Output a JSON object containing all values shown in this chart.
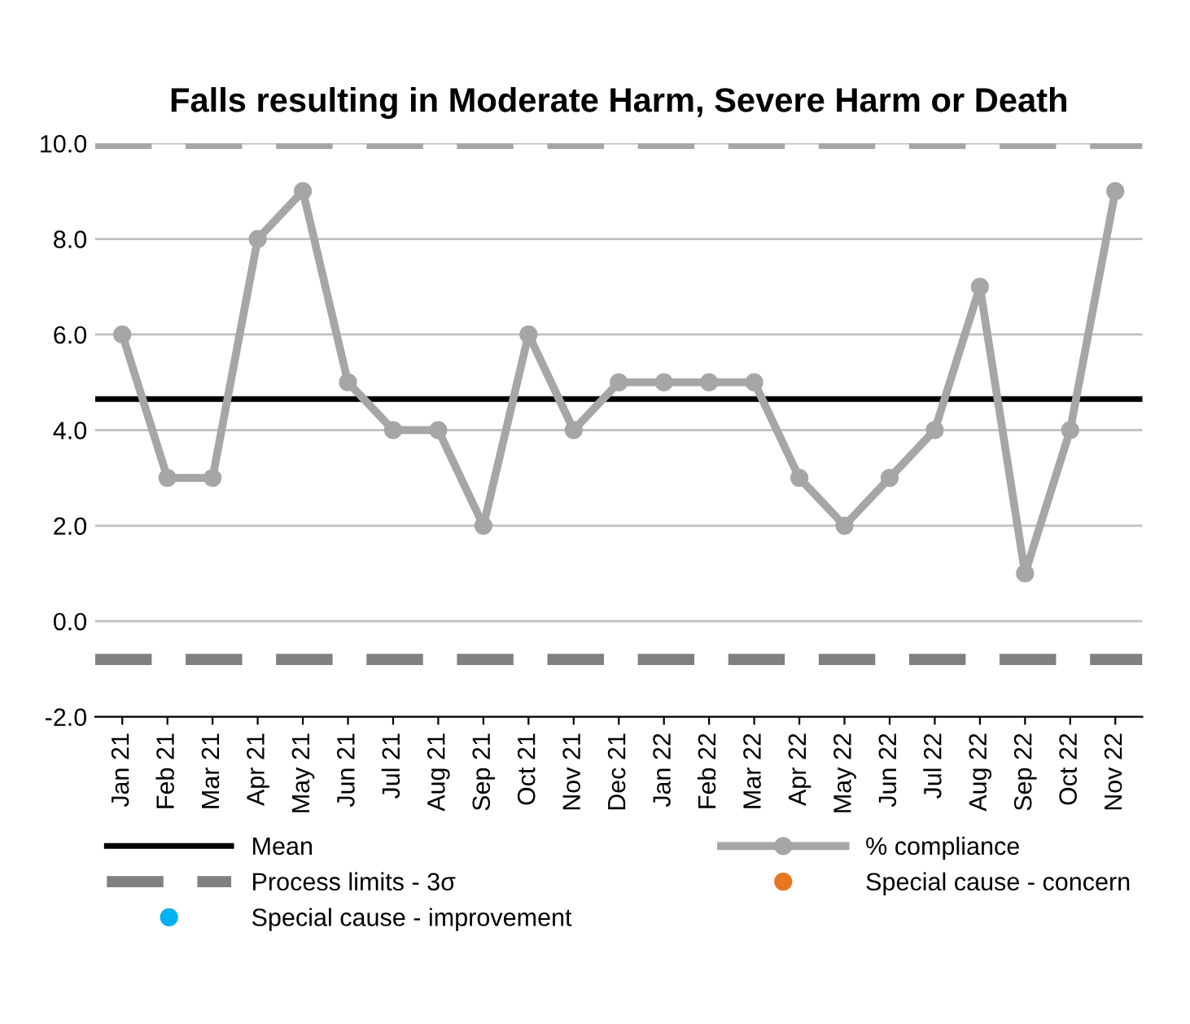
{
  "chart_data": {
    "type": "line",
    "title": "Falls resulting in Moderate Harm, Severe Harm or Death",
    "categories": [
      "Jan 21",
      "Feb 21",
      "Mar 21",
      "Apr 21",
      "May 21",
      "Jun 21",
      "Jul 21",
      "Aug 21",
      "Sep 21",
      "Oct 21",
      "Nov 21",
      "Dec 21",
      "Jan 22",
      "Feb 22",
      "Mar 22",
      "Apr 22",
      "May 22",
      "Jun 22",
      "Jul 22",
      "Aug 22",
      "Sep 22",
      "Oct 22",
      "Nov 22"
    ],
    "series": [
      {
        "name": "% compliance",
        "color": "#a6a6a6",
        "marker": "circle",
        "values": [
          6,
          3,
          3,
          8,
          9,
          5,
          4,
          4,
          2,
          6,
          4,
          5,
          5,
          5,
          5,
          3,
          2,
          3,
          4,
          7,
          1,
          4,
          9
        ]
      }
    ],
    "annotations": [
      "Special cause - concern",
      "Special cause - improvement"
    ],
    "ref_lines": [
      {
        "axis": "y",
        "value": 4.65,
        "label": "Mean",
        "color": "#000000",
        "line_style": "solid"
      },
      {
        "axis": "y",
        "value": 10,
        "color": "#a6a6a6",
        "line_style": "dashed"
      },
      {
        "axis": "y",
        "value": -0.8,
        "label": "Process limits - 3σ",
        "color": "#808080",
        "line_style": "dashed"
      }
    ],
    "ylim": [
      -2,
      10
    ],
    "yticks": [
      {
        "value": -2,
        "label": "-2.0"
      },
      {
        "value": 0,
        "label": "0.0"
      },
      {
        "value": 2,
        "label": "2.0"
      },
      {
        "value": 4,
        "label": "4.0"
      },
      {
        "value": 6,
        "label": "6.0"
      },
      {
        "value": 8,
        "label": "8.0"
      },
      {
        "value": 10,
        "label": "10.0"
      }
    ],
    "grid": "y",
    "legend": "bottom"
  }
}
